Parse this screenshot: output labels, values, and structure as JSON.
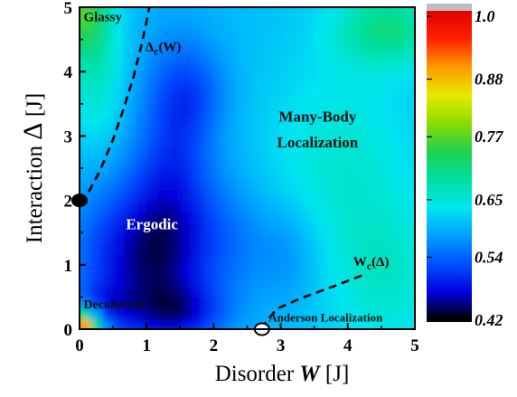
{
  "chart_data": {
    "type": "heatmap",
    "xlabel_prefix": "Disorder ",
    "xlabel_var": "W",
    "xlabel_unit": " [J]",
    "ylabel_prefix": "Interaction ",
    "ylabel_var": "Δ",
    "ylabel_unit": " [J]",
    "xlim": [
      0,
      5
    ],
    "ylim": [
      0,
      5
    ],
    "xticks": [
      "0",
      "1",
      "2",
      "3",
      "4",
      "5"
    ],
    "yticks": [
      "0",
      "1",
      "2",
      "3",
      "4",
      "5"
    ],
    "colorbar": {
      "range": [
        0.42,
        1.0
      ],
      "tick_labels": [
        "1.0",
        "0.88",
        "0.77",
        "0.65",
        "0.54",
        "0.42"
      ],
      "tick_values": [
        1.0,
        0.88,
        0.77,
        0.65,
        0.54,
        0.42
      ],
      "colors": [
        "#000000",
        "#0000dd",
        "#0050ff",
        "#00a0ff",
        "#00e6f0",
        "#00e0a0",
        "#20d050",
        "#8adc00",
        "#e6ea00",
        "#ff9a00",
        "#ff2000",
        "#e00000"
      ]
    },
    "regions": [
      {
        "label": "Glassy",
        "x": 0.06,
        "y": 4.78
      },
      {
        "label": "Many-Body",
        "x": 3.55,
        "y": 3.22
      },
      {
        "label": "Localization",
        "x": 3.55,
        "y": 2.82
      },
      {
        "label": "Ergodic",
        "x": 1.08,
        "y": 1.55
      },
      {
        "label": "Decoherent",
        "x": 0.06,
        "y": 0.32
      },
      {
        "label": "Anderson Localization",
        "x": 2.82,
        "y": 0.12
      }
    ],
    "curves": [
      {
        "name_base": "Δ",
        "name_sub": "c",
        "name_arg": "(W)",
        "label_x": 0.98,
        "label_y": 4.32,
        "points": [
          [
            0.0,
            1.98
          ],
          [
            0.12,
            2.1
          ],
          [
            0.3,
            2.45
          ],
          [
            0.5,
            2.95
          ],
          [
            0.65,
            3.4
          ],
          [
            0.8,
            3.9
          ],
          [
            0.92,
            4.4
          ],
          [
            1.0,
            4.78
          ],
          [
            1.04,
            5.0
          ]
        ]
      },
      {
        "name_base": "W",
        "name_sub": "c",
        "name_arg": "(Δ)",
        "label_x": 4.08,
        "label_y": 0.98,
        "points": [
          [
            2.72,
            0.0
          ],
          [
            2.78,
            0.12
          ],
          [
            2.95,
            0.32
          ],
          [
            3.3,
            0.48
          ],
          [
            3.75,
            0.65
          ],
          [
            4.25,
            0.85
          ]
        ]
      }
    ],
    "markers": [
      {
        "x": 0.0,
        "y": 2.0,
        "fill": "#000000"
      },
      {
        "x": 2.72,
        "y": 0.0,
        "fill": "#ffffff"
      }
    ],
    "field_base": 0.6,
    "field_features": [
      {
        "x": 0.0,
        "y": 0.0,
        "amp": 0.4,
        "sx": 0.28,
        "sy": 0.28
      },
      {
        "x": 0.0,
        "y": 5.0,
        "amp": 0.15,
        "sx": 0.45,
        "sy": 0.7
      },
      {
        "x": 0.25,
        "y": 3.9,
        "amp": 0.06,
        "sx": 0.4,
        "sy": 1.0
      },
      {
        "x": 4.6,
        "y": 4.7,
        "amp": 0.1,
        "sx": 0.8,
        "sy": 0.6
      },
      {
        "x": 4.6,
        "y": 0.8,
        "amp": 0.05,
        "sx": 0.8,
        "sy": 1.2
      },
      {
        "x": 3.9,
        "y": 2.6,
        "amp": 0.05,
        "sx": 1.1,
        "sy": 1.7
      },
      {
        "x": 0.9,
        "y": 1.1,
        "amp": -0.13,
        "sx": 0.95,
        "sy": 1.2
      },
      {
        "x": 1.5,
        "y": 0.25,
        "amp": -0.08,
        "sx": 0.7,
        "sy": 0.45
      },
      {
        "x": 1.4,
        "y": 2.5,
        "amp": -0.08,
        "sx": 0.6,
        "sy": 1.9
      },
      {
        "x": 1.7,
        "y": 3.7,
        "amp": -0.05,
        "sx": 0.55,
        "sy": 0.75
      },
      {
        "x": 3.1,
        "y": 1.2,
        "amp": -0.04,
        "sx": 0.5,
        "sy": 0.8
      },
      {
        "x": 0.35,
        "y": 0.35,
        "amp": -0.05,
        "sx": 0.45,
        "sy": 0.35
      },
      {
        "x": 2.25,
        "y": 1.4,
        "amp": -0.04,
        "sx": 0.55,
        "sy": 1.0
      }
    ]
  }
}
